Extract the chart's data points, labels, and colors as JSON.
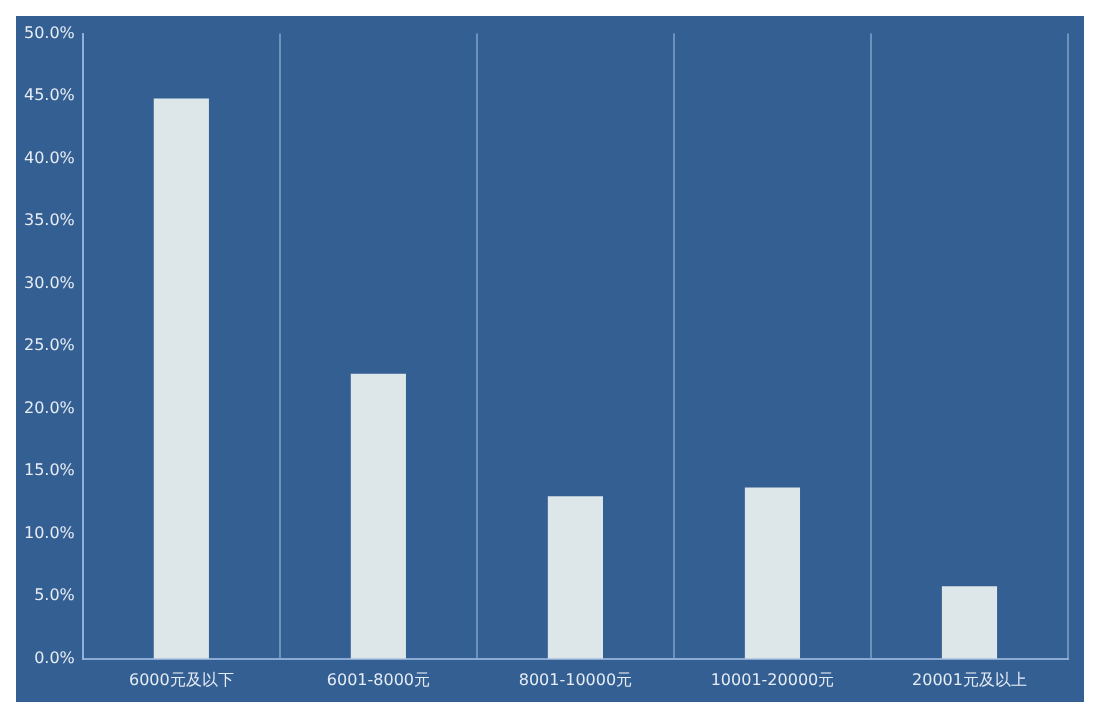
{
  "chart_data": {
    "type": "bar",
    "categories": [
      "6000元及以下",
      "6001-8000元",
      "8001-10000元",
      "10001-20000元",
      "20001元及以上"
    ],
    "values": [
      44.8,
      22.8,
      13.0,
      13.7,
      5.8
    ],
    "color": "#dde6e8",
    "ylim": [
      0,
      50
    ],
    "yticks": [
      {
        "value": 0,
        "label": "0.0%"
      },
      {
        "value": 5,
        "label": "5.0%"
      },
      {
        "value": 10,
        "label": "10.0%"
      },
      {
        "value": 15,
        "label": "15.0%"
      },
      {
        "value": 20,
        "label": "20.0%"
      },
      {
        "value": 25,
        "label": "25.0%"
      },
      {
        "value": 30,
        "label": "30.0%"
      },
      {
        "value": 35,
        "label": "35.0%"
      },
      {
        "value": 40,
        "label": "40.0%"
      },
      {
        "value": 45,
        "label": "45.0%"
      },
      {
        "value": 50,
        "label": "50.0%"
      }
    ],
    "grid": "x"
  }
}
